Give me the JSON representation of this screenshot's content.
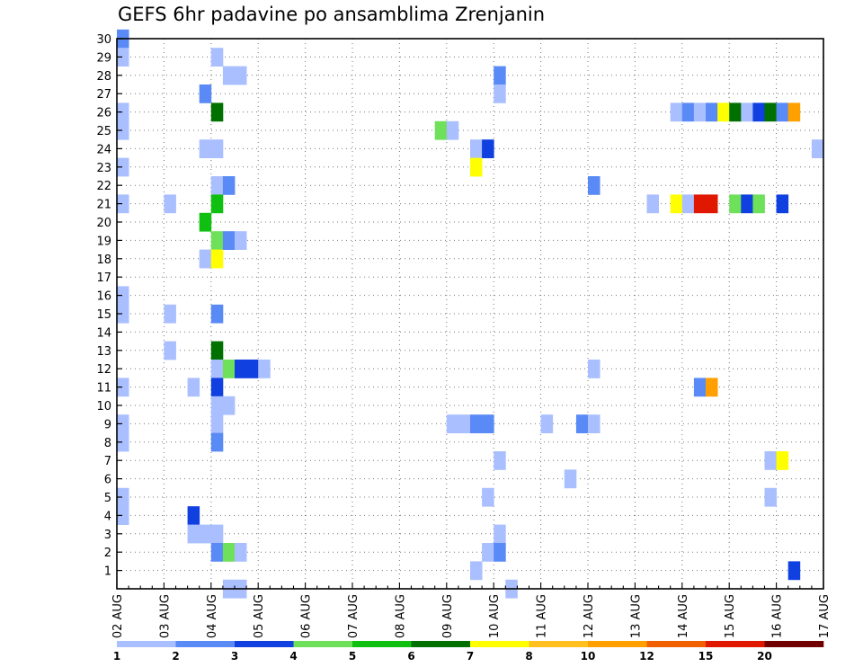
{
  "chart_data": {
    "type": "heatmap",
    "title": "GEFS 6hr padavine po ansamblima Zrenjanin",
    "x_tick_labels": [
      "02 AUG",
      "03 AUG",
      "04 AUG",
      "05 AUG",
      "06 AUG",
      "07 AUG",
      "08 AUG",
      "09 AUG",
      "10 AUG",
      "11 AUG",
      "12 AUG",
      "13 AUG",
      "14 AUG",
      "15 AUG",
      "16 AUG",
      "17 AUG"
    ],
    "y_tick_labels": [
      "1",
      "2",
      "3",
      "4",
      "5",
      "6",
      "7",
      "8",
      "9",
      "10",
      "11",
      "12",
      "13",
      "14",
      "15",
      "16",
      "17",
      "18",
      "19",
      "20",
      "21",
      "22",
      "23",
      "24",
      "25",
      "26",
      "27",
      "28",
      "29",
      "30"
    ],
    "x_range": [
      "02 AUG 00Z",
      "17 AUG 00Z"
    ],
    "y_range": [
      0,
      30
    ],
    "step_hours": 6,
    "grid": true,
    "legend": {
      "position": "bottom",
      "labels": [
        "1",
        "2",
        "3",
        "4",
        "5",
        "6",
        "7",
        "8",
        "10",
        "12",
        "15",
        "20"
      ],
      "colors": [
        "#aabfff",
        "#5a8af5",
        "#1040e0",
        "#6ee05a",
        "#10c010",
        "#007000",
        "#ffff00",
        "#ffc020",
        "#ffa000",
        "#f06000",
        "#e01800",
        "#700000"
      ]
    },
    "cells_note": "x = 6-hour step index from 02 AUG 00Z, y = ensemble member, c = color class index into legend.colors",
    "cells": [
      {
        "x": 0,
        "y": 30,
        "c": 1
      },
      {
        "x": 0,
        "y": 29,
        "c": 0
      },
      {
        "x": 0,
        "y": 26,
        "c": 0
      },
      {
        "x": 0,
        "y": 25,
        "c": 0
      },
      {
        "x": 0,
        "y": 23,
        "c": 0
      },
      {
        "x": 0,
        "y": 21,
        "c": 0
      },
      {
        "x": 0,
        "y": 16,
        "c": 0
      },
      {
        "x": 0,
        "y": 15,
        "c": 0
      },
      {
        "x": 0,
        "y": 11,
        "c": 0
      },
      {
        "x": 0,
        "y": 9,
        "c": 0
      },
      {
        "x": 0,
        "y": 8,
        "c": 0
      },
      {
        "x": 0,
        "y": 5,
        "c": 0
      },
      {
        "x": 0,
        "y": 4,
        "c": 0
      },
      {
        "x": 4,
        "y": 21,
        "c": 0
      },
      {
        "x": 4,
        "y": 15,
        "c": 0
      },
      {
        "x": 4,
        "y": 13,
        "c": 0
      },
      {
        "x": 6,
        "y": 11,
        "c": 0
      },
      {
        "x": 6,
        "y": 4,
        "c": 2
      },
      {
        "x": 6,
        "y": 3,
        "c": 0
      },
      {
        "x": 7,
        "y": 27,
        "c": 1
      },
      {
        "x": 7,
        "y": 24,
        "c": 0
      },
      {
        "x": 7,
        "y": 20,
        "c": 4
      },
      {
        "x": 7,
        "y": 18,
        "c": 0
      },
      {
        "x": 7,
        "y": 3,
        "c": 0
      },
      {
        "x": 8,
        "y": 29,
        "c": 0
      },
      {
        "x": 8,
        "y": 26,
        "c": 5
      },
      {
        "x": 8,
        "y": 24,
        "c": 0
      },
      {
        "x": 8,
        "y": 22,
        "c": 0
      },
      {
        "x": 8,
        "y": 21,
        "c": 4
      },
      {
        "x": 8,
        "y": 19,
        "c": 3
      },
      {
        "x": 8,
        "y": 18,
        "c": 6
      },
      {
        "x": 8,
        "y": 15,
        "c": 1
      },
      {
        "x": 8,
        "y": 13,
        "c": 5
      },
      {
        "x": 8,
        "y": 12,
        "c": 0
      },
      {
        "x": 8,
        "y": 11,
        "c": 2
      },
      {
        "x": 8,
        "y": 10,
        "c": 0
      },
      {
        "x": 8,
        "y": 9,
        "c": 0
      },
      {
        "x": 8,
        "y": 8,
        "c": 1
      },
      {
        "x": 8,
        "y": 3,
        "c": 0
      },
      {
        "x": 8,
        "y": 2,
        "c": 1
      },
      {
        "x": 9,
        "y": 28,
        "c": 0
      },
      {
        "x": 9,
        "y": 22,
        "c": 1
      },
      {
        "x": 9,
        "y": 19,
        "c": 1
      },
      {
        "x": 9,
        "y": 12,
        "c": 3
      },
      {
        "x": 9,
        "y": 10,
        "c": 0
      },
      {
        "x": 9,
        "y": 2,
        "c": 3
      },
      {
        "x": 9,
        "y": 0,
        "c": 0
      },
      {
        "x": 10,
        "y": 28,
        "c": 0
      },
      {
        "x": 10,
        "y": 19,
        "c": 0
      },
      {
        "x": 10,
        "y": 12,
        "c": 2
      },
      {
        "x": 10,
        "y": 2,
        "c": 0
      },
      {
        "x": 10,
        "y": 0,
        "c": 0
      },
      {
        "x": 11,
        "y": 12,
        "c": 2
      },
      {
        "x": 12,
        "y": 12,
        "c": 0
      },
      {
        "x": 27,
        "y": 25,
        "c": 3
      },
      {
        "x": 28,
        "y": 25,
        "c": 0
      },
      {
        "x": 28,
        "y": 9,
        "c": 0
      },
      {
        "x": 29,
        "y": 9,
        "c": 0
      },
      {
        "x": 30,
        "y": 24,
        "c": 0
      },
      {
        "x": 30,
        "y": 23,
        "c": 6
      },
      {
        "x": 30,
        "y": 9,
        "c": 1
      },
      {
        "x": 30,
        "y": 1,
        "c": 0
      },
      {
        "x": 31,
        "y": 24,
        "c": 2
      },
      {
        "x": 31,
        "y": 9,
        "c": 1
      },
      {
        "x": 31,
        "y": 5,
        "c": 0
      },
      {
        "x": 31,
        "y": 2,
        "c": 0
      },
      {
        "x": 32,
        "y": 28,
        "c": 1
      },
      {
        "x": 32,
        "y": 27,
        "c": 0
      },
      {
        "x": 32,
        "y": 7,
        "c": 0
      },
      {
        "x": 32,
        "y": 3,
        "c": 0
      },
      {
        "x": 32,
        "y": 2,
        "c": 1
      },
      {
        "x": 33,
        "y": 0,
        "c": 0
      },
      {
        "x": 36,
        "y": 9,
        "c": 0
      },
      {
        "x": 38,
        "y": 6,
        "c": 0
      },
      {
        "x": 39,
        "y": 9,
        "c": 1
      },
      {
        "x": 40,
        "y": 22,
        "c": 1
      },
      {
        "x": 40,
        "y": 12,
        "c": 0
      },
      {
        "x": 40,
        "y": 9,
        "c": 0
      },
      {
        "x": 45,
        "y": 21,
        "c": 0
      },
      {
        "x": 47,
        "y": 26,
        "c": 0
      },
      {
        "x": 47,
        "y": 21,
        "c": 6
      },
      {
        "x": 48,
        "y": 26,
        "c": 1
      },
      {
        "x": 48,
        "y": 21,
        "c": 0
      },
      {
        "x": 49,
        "y": 26,
        "c": 0
      },
      {
        "x": 49,
        "y": 21,
        "c": 10
      },
      {
        "x": 49,
        "y": 11,
        "c": 1
      },
      {
        "x": 50,
        "y": 26,
        "c": 1
      },
      {
        "x": 50,
        "y": 21,
        "c": 10
      },
      {
        "x": 50,
        "y": 11,
        "c": 8
      },
      {
        "x": 51,
        "y": 26,
        "c": 6
      },
      {
        "x": 52,
        "y": 26,
        "c": 5
      },
      {
        "x": 52,
        "y": 21,
        "c": 3
      },
      {
        "x": 53,
        "y": 26,
        "c": 0
      },
      {
        "x": 53,
        "y": 21,
        "c": 2
      },
      {
        "x": 54,
        "y": 26,
        "c": 2
      },
      {
        "x": 54,
        "y": 21,
        "c": 3
      },
      {
        "x": 55,
        "y": 26,
        "c": 5
      },
      {
        "x": 55,
        "y": 7,
        "c": 0
      },
      {
        "x": 55,
        "y": 5,
        "c": 0
      },
      {
        "x": 56,
        "y": 26,
        "c": 1
      },
      {
        "x": 56,
        "y": 21,
        "c": 2
      },
      {
        "x": 56,
        "y": 7,
        "c": 6
      },
      {
        "x": 57,
        "y": 26,
        "c": 8
      },
      {
        "x": 57,
        "y": 1,
        "c": 2
      },
      {
        "x": 59,
        "y": 24,
        "c": 0
      }
    ]
  }
}
